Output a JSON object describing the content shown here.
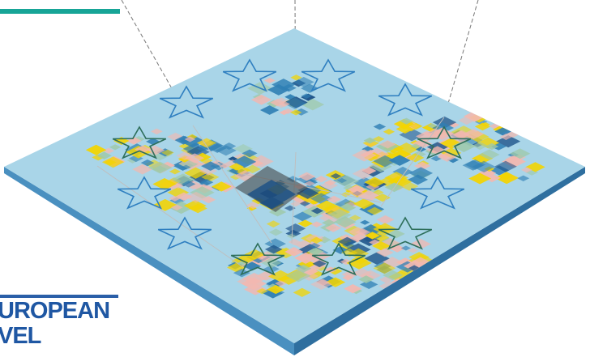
{
  "caption": {
    "line1": "UROPEAN",
    "line2": "VEL"
  },
  "colors": {
    "teal_accent": "#17a597",
    "blue_accent": "#2a5fa8",
    "map_water": "#a9d5e8",
    "map_edge": "#3b87b8",
    "land_pink": "#f2b8b0",
    "land_yellow": "#f3d400",
    "land_blue": "#2f7fb4",
    "land_dark": "#1a4f86",
    "star_blue": "#2f7fc0",
    "star_green": "#2e6f5b"
  },
  "icons": [
    "eu-star-icon",
    "hotspot-square-icon"
  ]
}
